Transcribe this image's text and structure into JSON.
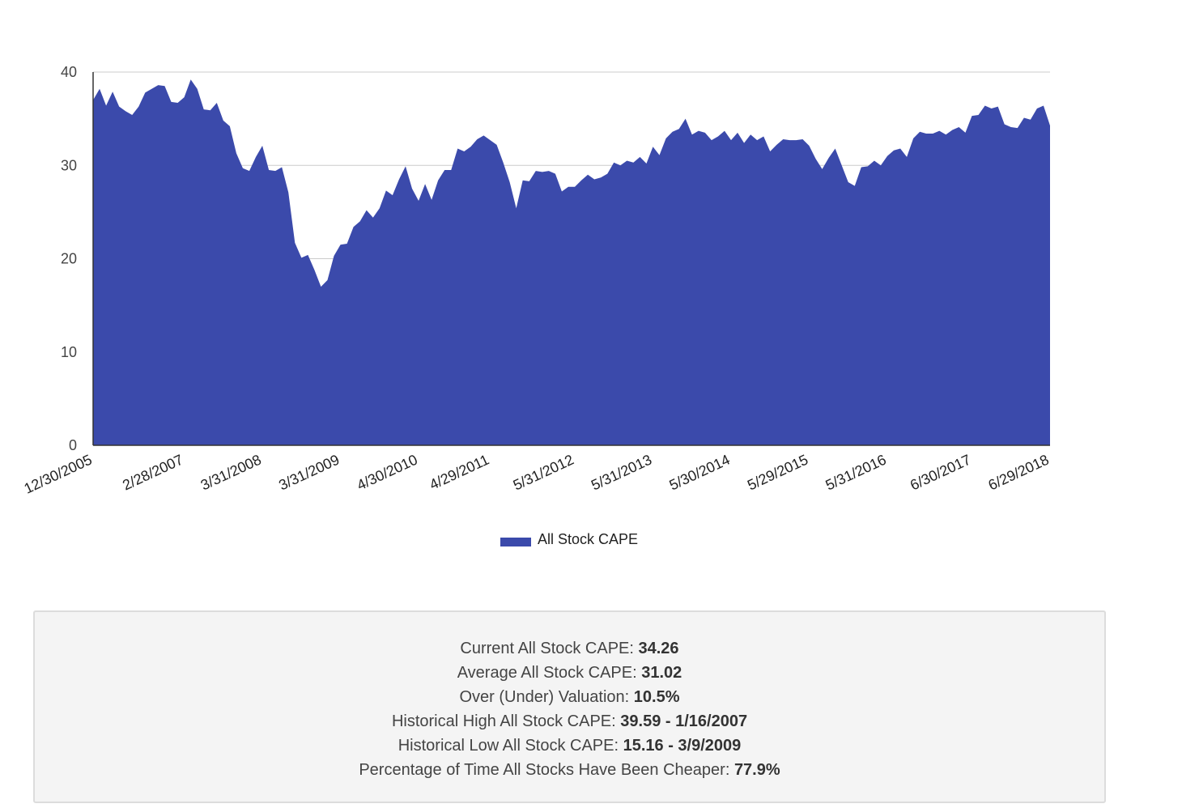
{
  "chart_data": {
    "type": "area",
    "series": [
      {
        "name": "All Stock CAPE",
        "color": "#3b4aab",
        "values": [
          37.0,
          38.2,
          36.4,
          37.9,
          36.3,
          35.8,
          35.4,
          36.3,
          37.8,
          38.2,
          38.6,
          38.5,
          36.8,
          36.7,
          37.3,
          39.2,
          38.2,
          36.0,
          35.9,
          36.7,
          34.8,
          34.2,
          31.3,
          29.7,
          29.4,
          30.9,
          32.1,
          29.5,
          29.4,
          29.8,
          27.1,
          21.7,
          20.1,
          20.4,
          18.8,
          17.0,
          17.7,
          20.3,
          21.5,
          21.6,
          23.4,
          24.0,
          25.2,
          24.4,
          25.4,
          27.3,
          26.8,
          28.5,
          29.9,
          27.5,
          26.2,
          28.0,
          26.3,
          28.4,
          29.5,
          29.5,
          31.8,
          31.5,
          32.0,
          32.8,
          33.2,
          32.7,
          32.2,
          30.3,
          28.2,
          25.4,
          28.4,
          28.3,
          29.4,
          29.3,
          29.4,
          29.1,
          27.2,
          27.7,
          27.7,
          28.4,
          29.0,
          28.5,
          28.7,
          29.1,
          30.3,
          30.0,
          30.5,
          30.3,
          30.9,
          30.2,
          32.0,
          31.1,
          32.9,
          33.6,
          33.9,
          35.0,
          33.3,
          33.7,
          33.5,
          32.7,
          33.1,
          33.7,
          32.7,
          33.5,
          32.4,
          33.3,
          32.7,
          33.1,
          31.5,
          32.2,
          32.8,
          32.7,
          32.7,
          32.8,
          32.1,
          30.7,
          29.6,
          30.8,
          31.8,
          30.0,
          28.2,
          27.8,
          29.8,
          29.9,
          30.5,
          30.0,
          31.0,
          31.6,
          31.8,
          30.9,
          32.9,
          33.6,
          33.4,
          33.4,
          33.7,
          33.3,
          33.8,
          34.1,
          33.5,
          35.3,
          35.4,
          36.4,
          36.1,
          36.3,
          34.4,
          34.1,
          34.0,
          35.1,
          34.9,
          36.1,
          36.4,
          34.26
        ]
      }
    ],
    "x_tick_labels": [
      "12/30/2005",
      "2/28/2007",
      "3/31/2008",
      "3/31/2009",
      "4/30/2010",
      "4/29/2011",
      "5/31/2012",
      "5/31/2013",
      "5/30/2014",
      "5/29/2015",
      "5/31/2016",
      "6/30/2017",
      "6/29/2018"
    ],
    "x_tick_indices": [
      0,
      14,
      26,
      38,
      50,
      61,
      74,
      86,
      98,
      110,
      122,
      135,
      147
    ],
    "yticks": [
      0,
      10,
      20,
      30,
      40
    ],
    "ylim": [
      0,
      40
    ],
    "grid": "horizontal",
    "legend_position": "bottom"
  },
  "legend": {
    "label": "All Stock CAPE"
  },
  "stats": [
    {
      "label": "Current All Stock CAPE: ",
      "value": "34.26"
    },
    {
      "label": "Average All Stock CAPE: ",
      "value": "31.02"
    },
    {
      "label": "Over (Under) Valuation: ",
      "value": "10.5%"
    },
    {
      "label": "Historical High All Stock CAPE: ",
      "value": "39.59 - 1/16/2007"
    },
    {
      "label": "Historical Low All Stock CAPE: ",
      "value": "15.16 - 3/9/2009"
    },
    {
      "label": "Percentage of Time All Stocks Have Been Cheaper: ",
      "value": "77.9%"
    }
  ]
}
